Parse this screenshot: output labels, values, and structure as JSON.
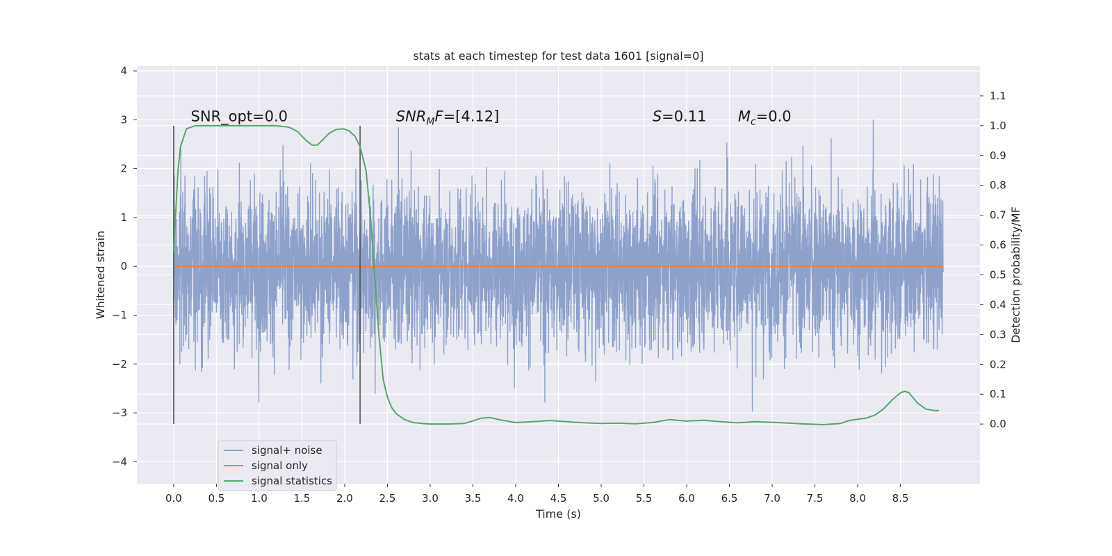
{
  "chart_data": {
    "type": "line",
    "title": "stats at each timestep for test data 1601 [signal=0]",
    "xlabel": "Time (s)",
    "ylabel": "Whitened strain",
    "ylabel_right": "Detection probability/MF",
    "xlim": [
      -0.43,
      9.43
    ],
    "ylim": [
      -4.45,
      4.1
    ],
    "ylim_right": [
      -0.2,
      1.2
    ],
    "x_ticks": [
      "0.0",
      "0.5",
      "1.0",
      "1.5",
      "2.0",
      "2.5",
      "3.0",
      "3.5",
      "4.0",
      "4.5",
      "5.0",
      "5.5",
      "6.0",
      "6.5",
      "7.0",
      "7.5",
      "8.0",
      "8.5"
    ],
    "y_ticks": [
      "4",
      "3",
      "2",
      "1",
      "0",
      "−1",
      "−2",
      "−3",
      "−4"
    ],
    "y_ticks_right": [
      "1.1",
      "1.0",
      "0.9",
      "0.8",
      "0.7",
      "0.6",
      "0.5",
      "0.4",
      "0.3",
      "0.2",
      "0.1",
      "0.0"
    ],
    "grid": true,
    "legend_position": "lower-left",
    "colors": {
      "noise": "#8da1cb",
      "signal": "#dd8452",
      "stats": "#55a868",
      "background": "#eaeaf2",
      "grid": "#ffffff",
      "markers": "#555555"
    },
    "annotations": {
      "snr_opt": "SNR_opt=0.0",
      "snr_mf_name": "SNR",
      "snr_mf_sub": "M",
      "snr_mf_rest": "F=[4.12]",
      "s_name": "S",
      "s_value": "=0.11",
      "mc_name": "M",
      "mc_sub": "c",
      "mc_value": "=0.0"
    },
    "vertical_markers_x": [
      0.0,
      2.18
    ],
    "series": [
      {
        "name": "signal+ noise",
        "axis": "left",
        "x_range": [
          0.0,
          9.0
        ],
        "noise_envelope": [
          -3.6,
          3.75
        ]
      },
      {
        "name": "signal only",
        "axis": "left",
        "x": [
          0.0,
          9.0
        ],
        "y": [
          0.0,
          0.0
        ]
      },
      {
        "name": "signal statistics",
        "axis": "right",
        "x": [
          0.0,
          0.05,
          0.08,
          0.15,
          0.25,
          0.4,
          0.6,
          0.8,
          1.0,
          1.2,
          1.35,
          1.45,
          1.55,
          1.62,
          1.68,
          1.75,
          1.82,
          1.9,
          1.98,
          2.05,
          2.12,
          2.18,
          2.25,
          2.3,
          2.35,
          2.4,
          2.45,
          2.5,
          2.55,
          2.6,
          2.7,
          2.8,
          2.9,
          3.0,
          3.2,
          3.4,
          3.6,
          3.7,
          3.8,
          3.9,
          4.0,
          4.2,
          4.4,
          4.6,
          4.8,
          5.0,
          5.2,
          5.4,
          5.6,
          5.8,
          6.0,
          6.2,
          6.4,
          6.6,
          6.8,
          7.0,
          7.2,
          7.4,
          7.6,
          7.8,
          7.9,
          8.0,
          8.1,
          8.2,
          8.3,
          8.4,
          8.5,
          8.55,
          8.6,
          8.7,
          8.8,
          8.9,
          8.95
        ],
        "y": [
          0.58,
          0.85,
          0.93,
          0.99,
          1.0,
          1.0,
          1.0,
          1.0,
          1.0,
          1.0,
          0.995,
          0.98,
          0.95,
          0.935,
          0.935,
          0.955,
          0.975,
          0.987,
          0.99,
          0.983,
          0.965,
          0.93,
          0.85,
          0.7,
          0.5,
          0.3,
          0.15,
          0.09,
          0.055,
          0.035,
          0.015,
          0.005,
          0.002,
          0.0,
          0.0,
          0.002,
          0.02,
          0.022,
          0.015,
          0.01,
          0.005,
          0.008,
          0.012,
          0.008,
          0.004,
          0.002,
          0.003,
          0.001,
          0.005,
          0.015,
          0.01,
          0.013,
          0.008,
          0.004,
          0.008,
          0.006,
          0.003,
          0.0,
          -0.002,
          0.002,
          0.012,
          0.016,
          0.02,
          0.03,
          0.05,
          0.08,
          0.105,
          0.11,
          0.105,
          0.07,
          0.05,
          0.045,
          0.045
        ]
      }
    ]
  }
}
